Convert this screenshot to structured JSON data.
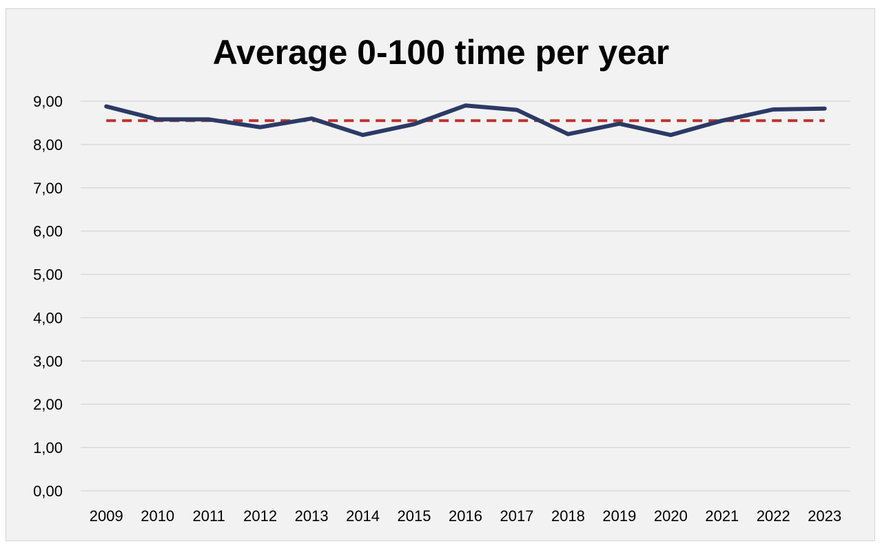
{
  "chart_data": {
    "type": "line",
    "title": "Average 0-100 time per year",
    "xlabel": "",
    "ylabel": "",
    "categories": [
      "2009",
      "2010",
      "2011",
      "2012",
      "2013",
      "2014",
      "2015",
      "2016",
      "2017",
      "2018",
      "2019",
      "2020",
      "2021",
      "2022",
      "2023"
    ],
    "series": [
      {
        "values": [
          8.88,
          8.58,
          8.58,
          8.4,
          8.6,
          8.22,
          8.47,
          8.9,
          8.8,
          8.24,
          8.48,
          8.22,
          8.55,
          8.81,
          8.83
        ]
      },
      {
        "values": [
          8.55,
          8.55,
          8.55,
          8.55,
          8.55,
          8.55,
          8.55,
          8.55,
          8.55,
          8.55,
          8.55,
          8.55,
          8.55,
          8.55,
          8.55
        ]
      }
    ],
    "ylim": [
      0,
      9
    ],
    "yticks": [
      "0,00",
      "1,00",
      "2,00",
      "3,00",
      "4,00",
      "5,00",
      "6,00",
      "7,00",
      "8,00",
      "9,00"
    ],
    "grid": true,
    "legend": "none",
    "colors": {
      "line": "#2b3a66",
      "average": "#c0302b",
      "grid": "#d9d9d9",
      "background": "#f2f2f2"
    }
  }
}
